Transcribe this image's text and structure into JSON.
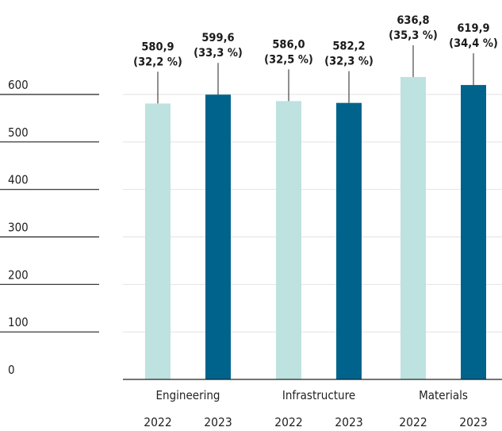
{
  "chart_data": {
    "type": "bar",
    "categories": [
      "Engineering",
      "Infrastructure",
      "Materials"
    ],
    "years": [
      "2022",
      "2023"
    ],
    "series": [
      {
        "values": [
          580.9,
          586.0,
          636.8
        ],
        "labels": [
          "580,9",
          "586,0",
          "636,8"
        ],
        "shares": [
          "(32,2 %)",
          "(32,5 %)",
          "(35,3 %)"
        ],
        "color": "#bde2df"
      },
      {
        "values": [
          599.6,
          582.2,
          619.9
        ],
        "labels": [
          "599,6",
          "582,2",
          "619,9"
        ],
        "shares": [
          "(33,3 %)",
          "(32,3 %)",
          "(34,4 %)"
        ],
        "color": "#00638c"
      }
    ],
    "y_ticks": [
      "0",
      "100",
      "200",
      "300",
      "400",
      "500",
      "600"
    ],
    "ylim": [
      0,
      600
    ],
    "grid": true
  }
}
